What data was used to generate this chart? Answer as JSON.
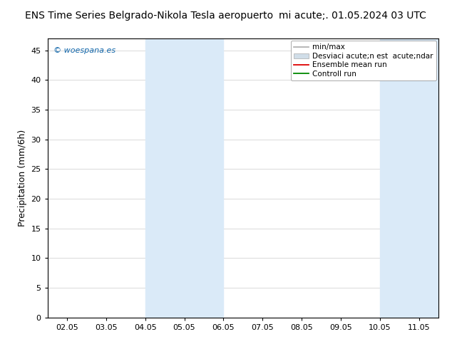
{
  "title_left": "ENS Time Series Belgrado-Nikola Tesla aeropuerto",
  "title_right": "mi acute;. 01.05.2024 03 UTC",
  "ylabel": "Precipitation (mm/6h)",
  "ylim": [
    0,
    47
  ],
  "yticks": [
    0,
    5,
    10,
    15,
    20,
    25,
    30,
    35,
    40,
    45
  ],
  "xtick_labels": [
    "02.05",
    "03.05",
    "04.05",
    "05.05",
    "06.05",
    "07.05",
    "08.05",
    "09.05",
    "10.05",
    "11.05"
  ],
  "xtick_positions": [
    0,
    1,
    2,
    3,
    4,
    5,
    6,
    7,
    8,
    9
  ],
  "xlim": [
    -0.5,
    9.5
  ],
  "shaded_regions": [
    {
      "xmin": 2.0,
      "xmax": 4.0,
      "color": "#daeaf8"
    },
    {
      "xmin": 8.0,
      "xmax": 9.5,
      "color": "#daeaf8"
    }
  ],
  "legend_labels": [
    "min/max",
    "Desviaci acute;n est  acute;ndar",
    "Ensemble mean run",
    "Controll run"
  ],
  "legend_line_colors": [
    "#aaaaaa",
    "#cccccc",
    "#dd0000",
    "#008800"
  ],
  "watermark": "© woespana.es",
  "watermark_color": "#1166aa",
  "bg_color": "#ffffff",
  "grid_color": "#cccccc",
  "title_fontsize": 10,
  "tick_fontsize": 8,
  "ylabel_fontsize": 9,
  "legend_fontsize": 7.5
}
